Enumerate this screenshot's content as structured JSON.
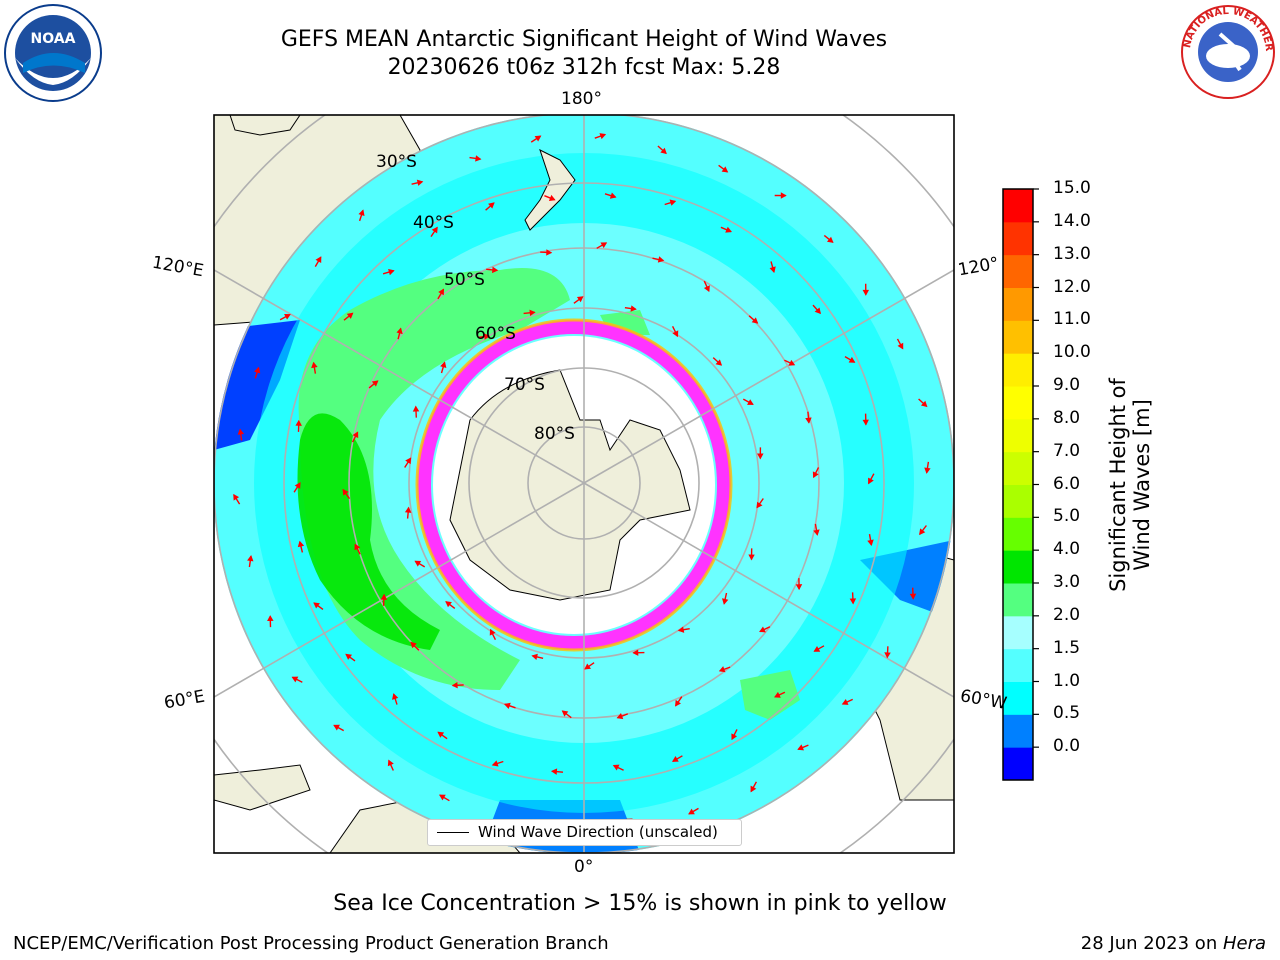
{
  "title_line1": "GEFS MEAN Antarctic Significant Height of Wind Waves",
  "title_line2": "20230626 t06z 312h fcst   Max: 5.28",
  "lon_labels": {
    "top": "180°",
    "bottom": "0°",
    "left_upper": "120°E",
    "left_lower": "60°E",
    "right_upper": "120°",
    "right_lower": "60°W"
  },
  "lat_labels": [
    "30°S",
    "40°S",
    "50°S",
    "60°S",
    "70°S",
    "80°S"
  ],
  "legend": {
    "label": "Wind Wave Direction (unscaled)"
  },
  "colorbar": {
    "label": "Significant Height of Wind Waves [m]",
    "ticks": [
      "15.0",
      "14.0",
      "13.0",
      "12.0",
      "11.0",
      "10.0",
      "9.0",
      "8.0",
      "7.0",
      "6.0",
      "5.0",
      "4.0",
      "3.0",
      "2.0",
      "1.5",
      "1.0",
      "0.5",
      "0.0"
    ],
    "colors": [
      "#0000ff",
      "#0080ff",
      "#00ffff",
      "#54ffff",
      "#a6ffff",
      "#54ff80",
      "#00e600",
      "#66ff00",
      "#aaff00",
      "#ccff00",
      "#eeff00",
      "#ffff00",
      "#ffee00",
      "#ffc000",
      "#ff9900",
      "#ff6600",
      "#ff3300",
      "#ff0000"
    ]
  },
  "ice_note": "Sea Ice Concentration > 15% is shown in pink to yellow",
  "footer_left": "NCEP/EMC/Verification Post Processing Product Generation Branch",
  "footer_right_date": "28 Jun 2023 on ",
  "footer_right_host": "Hera",
  "logos": {
    "noaa": "NOAA",
    "nws": "NATIONAL WEATHER SERVICE"
  }
}
